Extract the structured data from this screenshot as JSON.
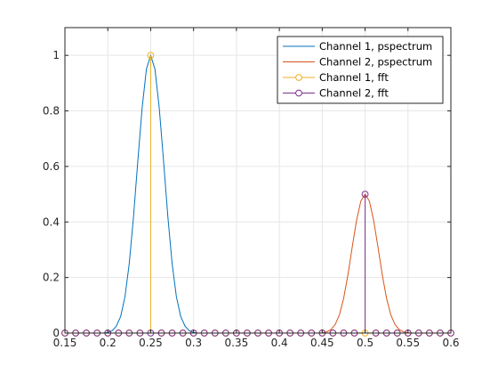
{
  "chart_data": {
    "type": "line",
    "title": "",
    "xlabel": "",
    "ylabel": "",
    "xlim": [
      0.15,
      0.6
    ],
    "ylim": [
      0,
      1.1
    ],
    "xticks": [
      0.15,
      0.2,
      0.25,
      0.3,
      0.35,
      0.4,
      0.45,
      0.5,
      0.55,
      0.6
    ],
    "xtick_labels": [
      "0.15",
      "0.2",
      "0.25",
      "0.3",
      "0.35",
      "0.4",
      "0.45",
      "0.5",
      "0.55",
      "0.6"
    ],
    "yticks": [
      0,
      0.2,
      0.4,
      0.6,
      0.8,
      1
    ],
    "ytick_labels": [
      "0",
      "0.2",
      "0.4",
      "0.6",
      "0.8",
      "1"
    ],
    "grid": true,
    "legend_position": "top-right",
    "series": [
      {
        "name": "Channel 1, pspectrum",
        "style": "line",
        "color": "#0072BD",
        "x": [
          0.195,
          0.2,
          0.205,
          0.21,
          0.215,
          0.22,
          0.225,
          0.23,
          0.235,
          0.24,
          0.245,
          0.25,
          0.255,
          0.26,
          0.265,
          0.27,
          0.275,
          0.28,
          0.285,
          0.29,
          0.295,
          0.3,
          0.305
        ],
        "y": [
          0,
          0.002,
          0.008,
          0.025,
          0.06,
          0.13,
          0.25,
          0.42,
          0.62,
          0.81,
          0.95,
          1.0,
          0.95,
          0.81,
          0.62,
          0.42,
          0.25,
          0.13,
          0.06,
          0.025,
          0.008,
          0.002,
          0
        ]
      },
      {
        "name": "Channel 2, pspectrum",
        "style": "line",
        "color": "#D95319",
        "x": [
          0.445,
          0.45,
          0.455,
          0.46,
          0.465,
          0.47,
          0.475,
          0.48,
          0.485,
          0.49,
          0.495,
          0.5,
          0.505,
          0.51,
          0.515,
          0.52,
          0.525,
          0.53,
          0.535,
          0.54,
          0.545,
          0.55,
          0.555
        ],
        "y": [
          0,
          0.001,
          0.004,
          0.012,
          0.03,
          0.065,
          0.125,
          0.21,
          0.31,
          0.405,
          0.475,
          0.5,
          0.475,
          0.405,
          0.31,
          0.21,
          0.125,
          0.065,
          0.03,
          0.012,
          0.004,
          0.001,
          0
        ]
      },
      {
        "name": "Channel 1, fft",
        "style": "stem",
        "color": "#EDB120",
        "x": [
          0.15,
          0.1625,
          0.175,
          0.1875,
          0.2,
          0.2125,
          0.225,
          0.2375,
          0.25,
          0.2625,
          0.275,
          0.2875,
          0.3,
          0.3125,
          0.325,
          0.3375,
          0.35,
          0.3625,
          0.375,
          0.3875,
          0.4,
          0.4125,
          0.425,
          0.4375,
          0.45,
          0.4625,
          0.475,
          0.4875,
          0.5,
          0.5125,
          0.525,
          0.5375,
          0.55,
          0.5625,
          0.575,
          0.5875,
          0.6
        ],
        "y": [
          0,
          0,
          0,
          0,
          0,
          0,
          0,
          0,
          1.0,
          0,
          0,
          0,
          0,
          0,
          0,
          0,
          0,
          0,
          0,
          0,
          0,
          0,
          0,
          0,
          0,
          0,
          0,
          0,
          0,
          0,
          0,
          0,
          0,
          0,
          0,
          0,
          0
        ]
      },
      {
        "name": "Channel 2, fft",
        "style": "stem",
        "color": "#7E2F8E",
        "x": [
          0.15,
          0.1625,
          0.175,
          0.1875,
          0.2,
          0.2125,
          0.225,
          0.2375,
          0.25,
          0.2625,
          0.275,
          0.2875,
          0.3,
          0.3125,
          0.325,
          0.3375,
          0.35,
          0.3625,
          0.375,
          0.3875,
          0.4,
          0.4125,
          0.425,
          0.4375,
          0.45,
          0.4625,
          0.475,
          0.4875,
          0.5,
          0.5125,
          0.525,
          0.5375,
          0.55,
          0.5625,
          0.575,
          0.5875,
          0.6
        ],
        "y": [
          0,
          0,
          0,
          0,
          0,
          0,
          0,
          0,
          0,
          0,
          0,
          0,
          0,
          0,
          0,
          0,
          0,
          0,
          0,
          0,
          0,
          0,
          0,
          0,
          0,
          0,
          0,
          0,
          0.5,
          0,
          0,
          0,
          0,
          0,
          0,
          0,
          0
        ]
      }
    ]
  }
}
